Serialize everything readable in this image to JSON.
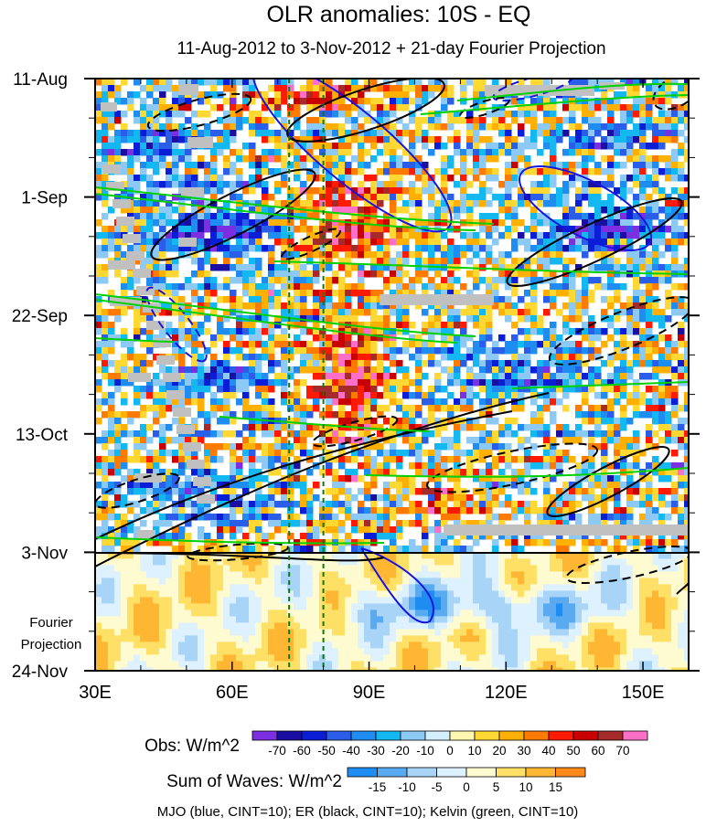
{
  "chart_data": {
    "type": "heatmap",
    "title": "OLR anomalies: 10S - EQ",
    "subtitle": "11-Aug-2012 to 3-Nov-2012 + 21-day Fourier Projection",
    "x_axis": {
      "label": "",
      "range": [
        30,
        160
      ],
      "ticks": [
        {
          "value": 30,
          "label": "30E"
        },
        {
          "value": 60,
          "label": "60E"
        },
        {
          "value": 90,
          "label": "90E"
        },
        {
          "value": 120,
          "label": "120E"
        },
        {
          "value": 150,
          "label": "150E"
        }
      ]
    },
    "y_axis": {
      "label": "",
      "range_days": [
        0,
        105
      ],
      "direction": "time increases downward",
      "ticks": [
        {
          "day": 0,
          "label": "11-Aug"
        },
        {
          "day": 21,
          "label": "1-Sep"
        },
        {
          "day": 42,
          "label": "22-Sep"
        },
        {
          "day": 63,
          "label": "13-Oct"
        },
        {
          "day": 84,
          "label": "3-Nov"
        },
        {
          "day": 105,
          "label": "24-Nov"
        }
      ]
    },
    "forecast_boundary_day": 84,
    "projection_label": [
      "Fourier",
      "Projection"
    ],
    "reference_longitudes": [
      72.5,
      80
    ],
    "obs_colorbar": {
      "label": "Obs: W/m^2",
      "levels": [
        "-70",
        "-60",
        "-50",
        "-40",
        "-30",
        "-20",
        "-10",
        "0",
        "10",
        "20",
        "30",
        "40",
        "50",
        "60",
        "70"
      ],
      "colors": [
        "#7b2fe0",
        "#1a0fa0",
        "#0a1ed8",
        "#2a5ee8",
        "#1e8cf0",
        "#14b8f0",
        "#8ccaf5",
        "#d4f0ff",
        "#fff7b0",
        "#ffd833",
        "#ffb000",
        "#ff7a00",
        "#ff1a00",
        "#c80000",
        "#a52a2a",
        "#ff6ec7"
      ]
    },
    "waves_colorbar": {
      "label": "Sum of Waves: W/m^2",
      "levels": [
        "-15",
        "-10",
        "-5",
        "0",
        "5",
        "10",
        "15"
      ],
      "colors": [
        "#1e8cf0",
        "#5aaaf2",
        "#a8d4f8",
        "#ddf1ff",
        "#fffbd0",
        "#ffe066",
        "#ffb733",
        "#ff8a1a"
      ]
    },
    "contour_legend": "MJO (blue, CINT=10); ER (black, CINT=10); Kelvin (green, CINT=10)",
    "series": [
      {
        "name": "MJO",
        "color": "#1515e0"
      },
      {
        "name": "ER",
        "color": "#000000"
      },
      {
        "name": "Kelvin",
        "color": "#00d000"
      }
    ],
    "missing_data_color": "#c0c0c0"
  }
}
